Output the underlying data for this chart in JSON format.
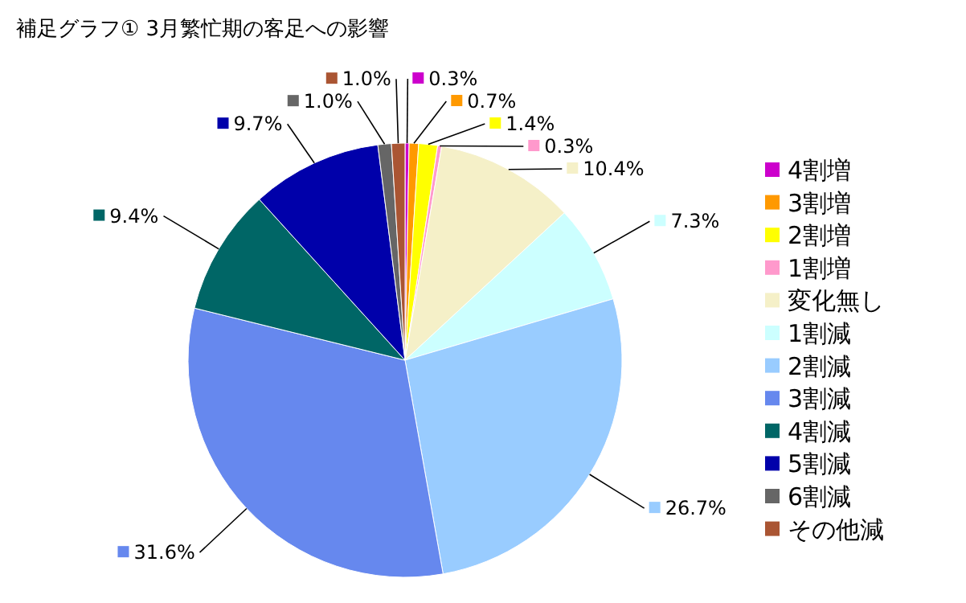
{
  "chart_data": {
    "type": "pie",
    "title": "補足グラフ① 3月繁忙期の客足への影響",
    "categories": [
      "4割増",
      "3割増",
      "2割増",
      "1割増",
      "変化無し",
      "1割減",
      "2割減",
      "3割減",
      "4割減",
      "5割減",
      "6割減",
      "その他減"
    ],
    "values": [
      0.3,
      0.7,
      1.4,
      0.3,
      10.4,
      7.3,
      26.7,
      31.6,
      9.4,
      9.7,
      1.0,
      1.0
    ],
    "value_labels": [
      "0.3%",
      "0.7%",
      "1.4%",
      "0.3%",
      "10.4%",
      "7.3%",
      "26.7%",
      "31.6%",
      "9.4%",
      "9.7%",
      "1.0%",
      "1.0%"
    ],
    "colors": [
      "#cc00cc",
      "#ff9900",
      "#ffff00",
      "#ff99cc",
      "#f5f0c8",
      "#ccffff",
      "#99ccff",
      "#6688ee",
      "#006666",
      "#0000aa",
      "#666666",
      "#aa5533"
    ],
    "legend": "right"
  }
}
